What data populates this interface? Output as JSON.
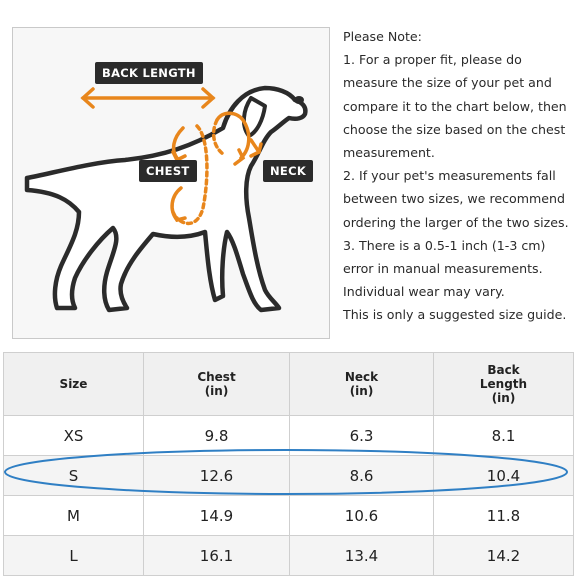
{
  "diagram": {
    "labels": {
      "back_length": "BACK LENGTH",
      "chest": "CHEST",
      "neck": "NECK"
    },
    "colors": {
      "arrow": "#e8861c",
      "outline": "#2b2b2b",
      "tag": "#2b2b2b"
    }
  },
  "notes": {
    "lines": [
      "Please Note:",
      "1. For a proper fit, please do",
      "measure the size of your pet and",
      "compare it to the chart below, then",
      "choose the size based on the chest",
      "measurement.",
      "2. If your pet's measurements fall",
      "between two sizes, we recommend",
      "ordering the larger of the two sizes.",
      "3. There is a 0.5-1 inch (1-3 cm)",
      "error in manual measurements.",
      "Individual wear may vary.",
      "This is only a suggested size guide."
    ]
  },
  "table": {
    "headers": [
      [
        "Size"
      ],
      [
        "Chest",
        "(in)"
      ],
      [
        "Neck",
        "(in)"
      ],
      [
        "Back",
        "Length",
        "(in)"
      ]
    ],
    "rows": [
      [
        "XS",
        "9.8",
        "6.3",
        "8.1"
      ],
      [
        "S",
        "12.6",
        "8.6",
        "10.4"
      ],
      [
        "M",
        "14.9",
        "10.6",
        "11.8"
      ],
      [
        "L",
        "16.1",
        "13.4",
        "14.2"
      ]
    ],
    "highlighted_row": "S",
    "highlight_color": "#2f7fc4"
  }
}
